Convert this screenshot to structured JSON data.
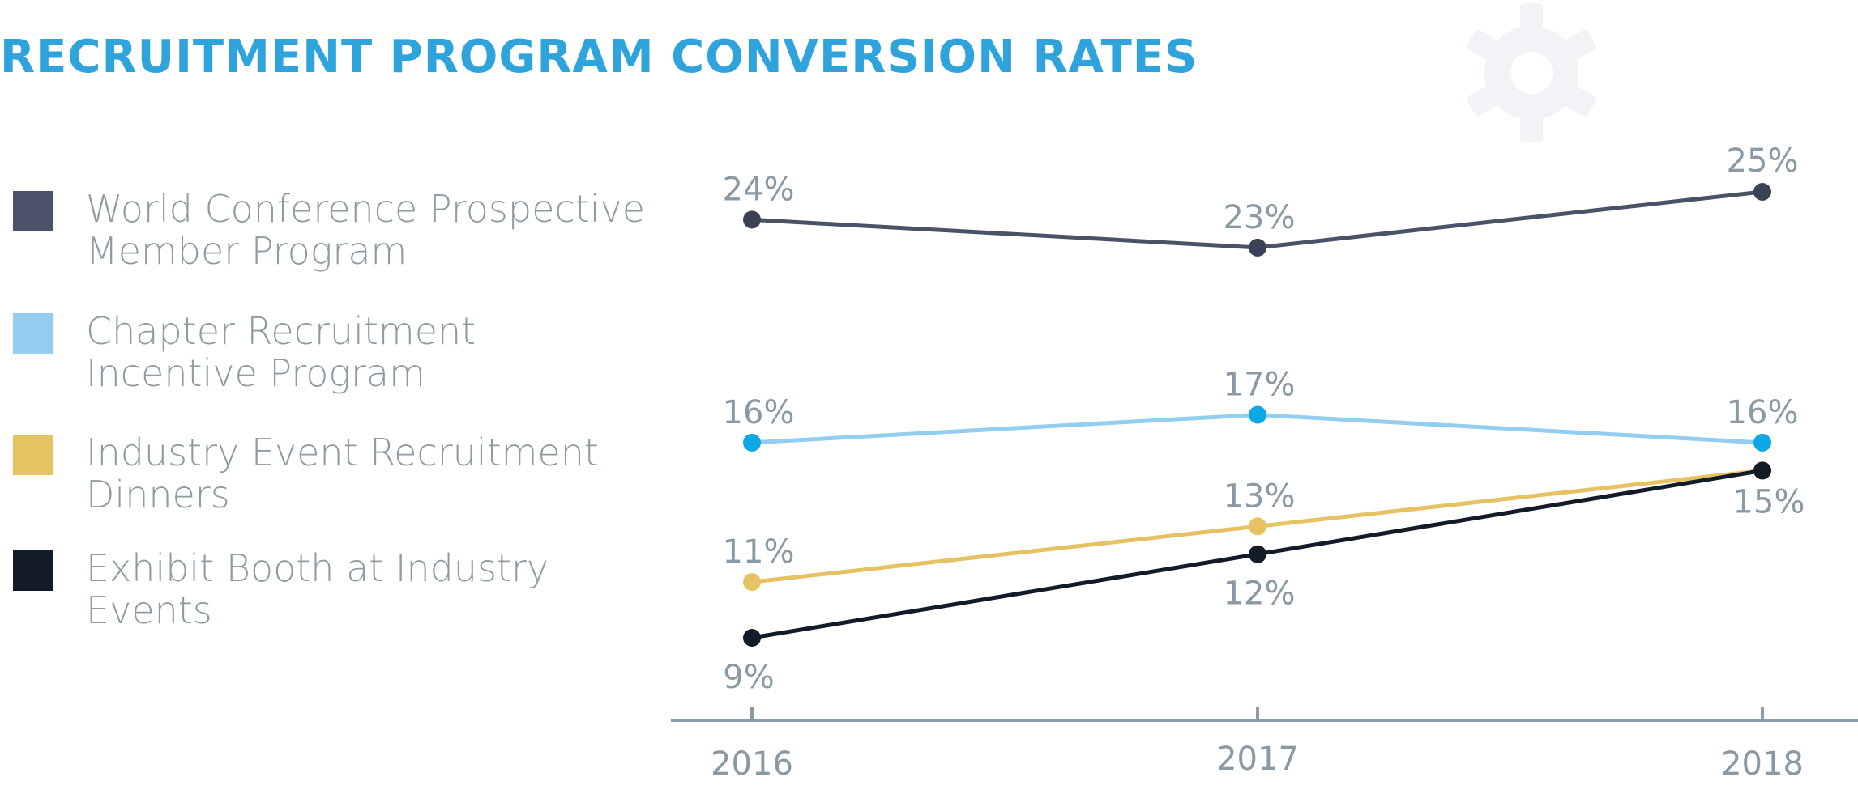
{
  "title": "RECRUITMENT PROGRAM CONVERSION RATES",
  "legend": [
    {
      "label": "World Conference Prospective Member Program",
      "color": "#4a5268"
    },
    {
      "label": "Chapter Recruitment Incentive Program",
      "color": "#93cdf0"
    },
    {
      "label": "Industry Event Recruitment Dinners",
      "color": "#e6c262"
    },
    {
      "label": "Exhibit Booth at Industry Events",
      "color": "#131a28"
    }
  ],
  "chart_data": {
    "type": "line",
    "title": "RECRUITMENT PROGRAM CONVERSION RATES",
    "x": [
      "2016",
      "2017",
      "2018"
    ],
    "ylim": [
      9,
      25
    ],
    "grid": false,
    "legend_position": "left",
    "series": [
      {
        "name": "World Conference Prospective Member Program",
        "values": [
          24,
          23,
          25
        ],
        "labels": [
          "24%",
          "23%",
          "25%"
        ],
        "line_color": "#4a5268",
        "marker_color": "#3a4255"
      },
      {
        "name": "Chapter Recruitment Incentive Program",
        "values": [
          16,
          17,
          16
        ],
        "labels": [
          "16%",
          "17%",
          "16%"
        ],
        "line_color": "#93cdf0",
        "marker_color": "#0ea7e6"
      },
      {
        "name": "Industry Event Recruitment Dinners",
        "values": [
          11,
          13,
          15
        ],
        "labels": [
          "11%",
          "13%",
          ""
        ],
        "line_color": "#e6c262",
        "marker_color": "#e6c262"
      },
      {
        "name": "Exhibit Booth at Industry Events",
        "values": [
          9,
          12,
          15
        ],
        "labels": [
          "9%",
          "12%",
          "15%"
        ],
        "line_color": "#131a28",
        "marker_color": "#131a28"
      }
    ]
  },
  "colors": {
    "title": "#2ea3dc",
    "axis": "#8a9ca6",
    "label_text": "#8a9aa4",
    "legend_text": "#8e9ba3",
    "gear": "#f1f3f6"
  },
  "icons": {
    "background": "gear-icon"
  }
}
